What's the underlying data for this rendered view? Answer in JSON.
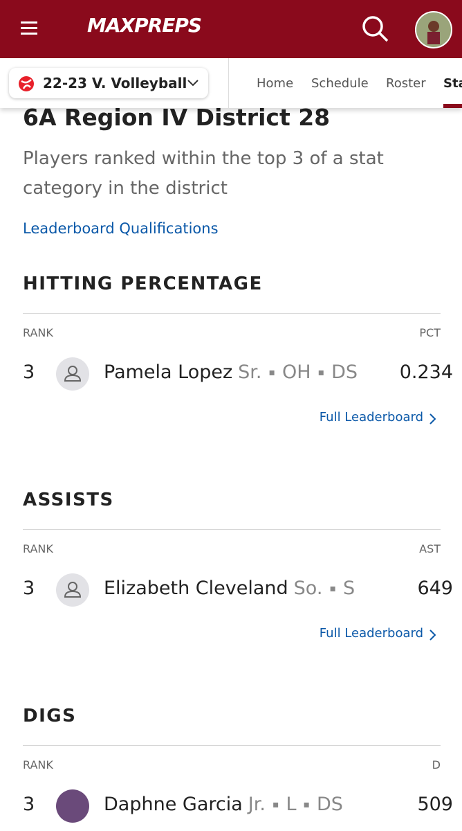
{
  "header": {
    "logo": "MAXPREPS"
  },
  "subnav": {
    "team": "22-23 V. Volleyball",
    "tabs": [
      "Home",
      "Schedule",
      "Roster",
      "Stats"
    ]
  },
  "page": {
    "title": "6A Region IV District 28",
    "subtitle": "Players ranked within the top 3 of a stat category in the district",
    "qualifications_link": "Leaderboard Qualifications"
  },
  "sections": [
    {
      "title": "HITTING PERCENTAGE",
      "rank_header": "RANK",
      "stat_header": "PCT",
      "rows": [
        {
          "rank": 3,
          "name": "Pamela Lopez",
          "details": [
            "Sr.",
            "OH",
            "DS"
          ],
          "value": 0.234
        }
      ],
      "link": "Full Leaderboard"
    },
    {
      "title": "ASSISTS",
      "rank_header": "RANK",
      "stat_header": "AST",
      "rows": [
        {
          "rank": 3,
          "name": "Elizabeth Cleveland",
          "details": [
            "So.",
            "S"
          ],
          "value": 649
        }
      ],
      "link": "Full Leaderboard"
    },
    {
      "title": "DIGS",
      "rank_header": "RANK",
      "stat_header": "D",
      "rows": [
        {
          "rank": 3,
          "name": "Daphne Garcia",
          "details": [
            "Jr.",
            "L",
            "DS"
          ],
          "value": 509,
          "photo": true
        }
      ]
    }
  ]
}
